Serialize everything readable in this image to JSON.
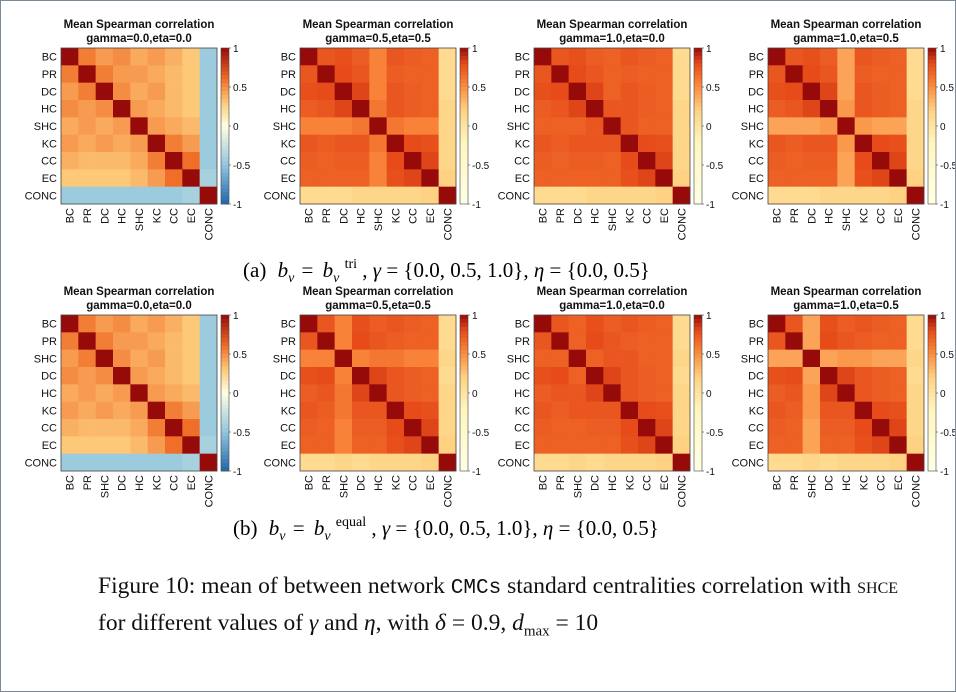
{
  "chart_data": [
    {
      "type": "heatmap",
      "title": "Mean Spearman correlation",
      "subtitle": "gamma=0.0,eta=0.0",
      "labels": [
        "BC",
        "PR",
        "DC",
        "HC",
        "SHC",
        "KC",
        "CC",
        "EC",
        "CONC"
      ],
      "colormap": "diverging-blue-white-red",
      "clim": [
        -1,
        1
      ],
      "colorbar_ticks": [
        "1",
        "0.5",
        "0",
        "-0.5",
        "-1"
      ],
      "values": [
        [
          1.0,
          0.55,
          0.45,
          0.5,
          0.4,
          0.45,
          0.38,
          0.3,
          -0.45
        ],
        [
          0.55,
          1.0,
          0.55,
          0.45,
          0.45,
          0.4,
          0.35,
          0.3,
          -0.45
        ],
        [
          0.45,
          0.55,
          1.0,
          0.5,
          0.4,
          0.45,
          0.35,
          0.3,
          -0.45
        ],
        [
          0.5,
          0.45,
          0.5,
          1.0,
          0.45,
          0.4,
          0.35,
          0.3,
          -0.45
        ],
        [
          0.4,
          0.45,
          0.4,
          0.45,
          1.0,
          0.45,
          0.4,
          0.35,
          -0.45
        ],
        [
          0.45,
          0.4,
          0.45,
          0.4,
          0.45,
          1.0,
          0.55,
          0.45,
          -0.45
        ],
        [
          0.38,
          0.35,
          0.35,
          0.35,
          0.4,
          0.55,
          1.0,
          0.6,
          -0.45
        ],
        [
          0.3,
          0.3,
          0.3,
          0.3,
          0.35,
          0.45,
          0.6,
          1.0,
          -0.4
        ],
        [
          -0.45,
          -0.45,
          -0.45,
          -0.45,
          -0.45,
          -0.45,
          -0.45,
          -0.4,
          1.0
        ]
      ]
    },
    {
      "type": "heatmap",
      "title": "Mean Spearman correlation",
      "subtitle": "gamma=0.5,eta=0.5",
      "labels": [
        "BC",
        "PR",
        "DC",
        "HC",
        "SHC",
        "KC",
        "CC",
        "EC",
        "CONC"
      ],
      "colormap": "white-yellow-red",
      "clim": [
        -1,
        1
      ],
      "colorbar_ticks": [
        "1",
        "0.5",
        "0",
        "-0.5",
        "-1"
      ],
      "values": [
        [
          1.0,
          0.75,
          0.78,
          0.72,
          0.55,
          0.75,
          0.72,
          0.7,
          0.1
        ],
        [
          0.75,
          1.0,
          0.8,
          0.75,
          0.55,
          0.72,
          0.7,
          0.7,
          0.1
        ],
        [
          0.78,
          0.8,
          1.0,
          0.82,
          0.55,
          0.75,
          0.72,
          0.7,
          0.1
        ],
        [
          0.72,
          0.75,
          0.82,
          1.0,
          0.6,
          0.75,
          0.72,
          0.7,
          0.15
        ],
        [
          0.55,
          0.55,
          0.55,
          0.6,
          1.0,
          0.6,
          0.55,
          0.55,
          0.15
        ],
        [
          0.75,
          0.72,
          0.75,
          0.75,
          0.6,
          1.0,
          0.8,
          0.78,
          0.15
        ],
        [
          0.72,
          0.7,
          0.72,
          0.72,
          0.55,
          0.8,
          1.0,
          0.82,
          0.15
        ],
        [
          0.7,
          0.7,
          0.7,
          0.7,
          0.55,
          0.78,
          0.82,
          1.0,
          0.2
        ],
        [
          0.1,
          0.1,
          0.1,
          0.15,
          0.15,
          0.15,
          0.15,
          0.2,
          1.0
        ]
      ]
    },
    {
      "type": "heatmap",
      "title": "Mean Spearman correlation",
      "subtitle": "gamma=1.0,eta=0.0",
      "labels": [
        "BC",
        "PR",
        "DC",
        "HC",
        "SHC",
        "KC",
        "CC",
        "EC",
        "CONC"
      ],
      "colormap": "white-yellow-red",
      "clim": [
        -1,
        1
      ],
      "colorbar_ticks": [
        "1",
        "0.5",
        "0",
        "-0.5",
        "-1"
      ],
      "values": [
        [
          1.0,
          0.75,
          0.78,
          0.72,
          0.7,
          0.75,
          0.72,
          0.7,
          0.1
        ],
        [
          0.75,
          1.0,
          0.8,
          0.75,
          0.7,
          0.72,
          0.7,
          0.7,
          0.1
        ],
        [
          0.78,
          0.8,
          1.0,
          0.82,
          0.7,
          0.75,
          0.72,
          0.7,
          0.1
        ],
        [
          0.72,
          0.75,
          0.82,
          1.0,
          0.75,
          0.75,
          0.72,
          0.7,
          0.15
        ],
        [
          0.7,
          0.7,
          0.7,
          0.75,
          1.0,
          0.75,
          0.7,
          0.7,
          0.15
        ],
        [
          0.75,
          0.72,
          0.75,
          0.75,
          0.75,
          1.0,
          0.8,
          0.78,
          0.15
        ],
        [
          0.72,
          0.7,
          0.72,
          0.72,
          0.7,
          0.8,
          1.0,
          0.82,
          0.15
        ],
        [
          0.7,
          0.7,
          0.7,
          0.7,
          0.7,
          0.78,
          0.82,
          1.0,
          0.2
        ],
        [
          0.1,
          0.1,
          0.1,
          0.15,
          0.15,
          0.15,
          0.15,
          0.2,
          1.0
        ]
      ]
    },
    {
      "type": "heatmap",
      "title": "Mean Spearman correlation",
      "subtitle": "gamma=1.0,eta=0.5",
      "labels": [
        "BC",
        "PR",
        "DC",
        "HC",
        "SHC",
        "KC",
        "CC",
        "EC",
        "CONC"
      ],
      "colormap": "white-yellow-red",
      "clim": [
        -1,
        1
      ],
      "colorbar_ticks": [
        "1",
        "0.5",
        "0",
        "-0.5",
        "-1"
      ],
      "values": [
        [
          1.0,
          0.75,
          0.78,
          0.72,
          0.4,
          0.75,
          0.72,
          0.7,
          0.1
        ],
        [
          0.75,
          1.0,
          0.8,
          0.75,
          0.4,
          0.72,
          0.7,
          0.7,
          0.1
        ],
        [
          0.78,
          0.8,
          1.0,
          0.82,
          0.4,
          0.75,
          0.72,
          0.7,
          0.1
        ],
        [
          0.72,
          0.75,
          0.82,
          1.0,
          0.45,
          0.75,
          0.72,
          0.7,
          0.15
        ],
        [
          0.4,
          0.4,
          0.4,
          0.45,
          1.0,
          0.45,
          0.4,
          0.4,
          0.15
        ],
        [
          0.75,
          0.72,
          0.75,
          0.75,
          0.45,
          1.0,
          0.8,
          0.78,
          0.15
        ],
        [
          0.72,
          0.7,
          0.72,
          0.72,
          0.4,
          0.8,
          1.0,
          0.82,
          0.15
        ],
        [
          0.7,
          0.7,
          0.7,
          0.7,
          0.4,
          0.78,
          0.82,
          1.0,
          0.2
        ],
        [
          0.1,
          0.1,
          0.1,
          0.15,
          0.15,
          0.15,
          0.15,
          0.2,
          1.0
        ]
      ]
    },
    {
      "type": "heatmap",
      "title": "Mean Spearman correlation",
      "subtitle": "gamma=0.0,eta=0.0",
      "labels": [
        "BC",
        "PR",
        "SHC",
        "DC",
        "HC",
        "KC",
        "CC",
        "EC",
        "CONC"
      ],
      "colormap": "diverging-blue-white-red",
      "clim": [
        -1,
        1
      ],
      "colorbar_ticks": [
        "1",
        "0.5",
        "0",
        "-0.5",
        "-1"
      ],
      "values": [
        [
          1.0,
          0.55,
          0.45,
          0.5,
          0.4,
          0.45,
          0.38,
          0.3,
          -0.45
        ],
        [
          0.55,
          1.0,
          0.55,
          0.45,
          0.45,
          0.4,
          0.35,
          0.3,
          -0.45
        ],
        [
          0.45,
          0.55,
          1.0,
          0.5,
          0.4,
          0.45,
          0.35,
          0.3,
          -0.45
        ],
        [
          0.5,
          0.45,
          0.5,
          1.0,
          0.45,
          0.4,
          0.35,
          0.3,
          -0.45
        ],
        [
          0.4,
          0.45,
          0.4,
          0.45,
          1.0,
          0.45,
          0.4,
          0.35,
          -0.45
        ],
        [
          0.45,
          0.4,
          0.45,
          0.4,
          0.45,
          1.0,
          0.55,
          0.45,
          -0.45
        ],
        [
          0.38,
          0.35,
          0.35,
          0.35,
          0.4,
          0.55,
          1.0,
          0.6,
          -0.45
        ],
        [
          0.3,
          0.3,
          0.3,
          0.3,
          0.35,
          0.45,
          0.6,
          1.0,
          -0.4
        ],
        [
          -0.45,
          -0.45,
          -0.45,
          -0.45,
          -0.45,
          -0.45,
          -0.45,
          -0.4,
          1.0
        ]
      ]
    },
    {
      "type": "heatmap",
      "title": "Mean Spearman correlation",
      "subtitle": "gamma=0.5,eta=0.5",
      "labels": [
        "BC",
        "PR",
        "SHC",
        "DC",
        "HC",
        "KC",
        "CC",
        "EC",
        "CONC"
      ],
      "colormap": "white-yellow-red",
      "clim": [
        -1,
        1
      ],
      "colorbar_ticks": [
        "1",
        "0.5",
        "0",
        "-0.5",
        "-1"
      ],
      "values": [
        [
          1.0,
          0.75,
          0.55,
          0.78,
          0.72,
          0.75,
          0.72,
          0.7,
          0.1
        ],
        [
          0.75,
          1.0,
          0.55,
          0.8,
          0.75,
          0.72,
          0.7,
          0.7,
          0.1
        ],
        [
          0.55,
          0.55,
          1.0,
          0.55,
          0.6,
          0.6,
          0.55,
          0.55,
          0.15
        ],
        [
          0.78,
          0.8,
          0.55,
          1.0,
          0.82,
          0.75,
          0.72,
          0.7,
          0.1
        ],
        [
          0.72,
          0.75,
          0.6,
          0.82,
          1.0,
          0.75,
          0.72,
          0.7,
          0.15
        ],
        [
          0.75,
          0.72,
          0.6,
          0.75,
          0.75,
          1.0,
          0.8,
          0.78,
          0.15
        ],
        [
          0.72,
          0.7,
          0.55,
          0.72,
          0.72,
          0.8,
          1.0,
          0.82,
          0.15
        ],
        [
          0.7,
          0.7,
          0.55,
          0.7,
          0.7,
          0.78,
          0.82,
          1.0,
          0.2
        ],
        [
          0.1,
          0.1,
          0.15,
          0.1,
          0.15,
          0.15,
          0.15,
          0.2,
          1.0
        ]
      ]
    },
    {
      "type": "heatmap",
      "title": "Mean Spearman correlation",
      "subtitle": "gamma=1.0,eta=0.0",
      "labels": [
        "BC",
        "PR",
        "SHC",
        "DC",
        "HC",
        "KC",
        "CC",
        "EC",
        "CONC"
      ],
      "colormap": "white-yellow-red",
      "clim": [
        -1,
        1
      ],
      "colorbar_ticks": [
        "1",
        "0.5",
        "0",
        "-0.5",
        "-1"
      ],
      "values": [
        [
          1.0,
          0.75,
          0.7,
          0.78,
          0.72,
          0.75,
          0.72,
          0.7,
          0.1
        ],
        [
          0.75,
          1.0,
          0.7,
          0.8,
          0.75,
          0.72,
          0.7,
          0.7,
          0.1
        ],
        [
          0.7,
          0.7,
          1.0,
          0.7,
          0.75,
          0.75,
          0.7,
          0.7,
          0.15
        ],
        [
          0.78,
          0.8,
          0.7,
          1.0,
          0.82,
          0.75,
          0.72,
          0.7,
          0.1
        ],
        [
          0.72,
          0.75,
          0.75,
          0.82,
          1.0,
          0.75,
          0.72,
          0.7,
          0.15
        ],
        [
          0.75,
          0.72,
          0.75,
          0.75,
          0.75,
          1.0,
          0.8,
          0.78,
          0.15
        ],
        [
          0.72,
          0.7,
          0.7,
          0.72,
          0.72,
          0.8,
          1.0,
          0.82,
          0.15
        ],
        [
          0.7,
          0.7,
          0.7,
          0.7,
          0.7,
          0.78,
          0.82,
          1.0,
          0.2
        ],
        [
          0.1,
          0.1,
          0.15,
          0.1,
          0.15,
          0.15,
          0.15,
          0.2,
          1.0
        ]
      ]
    },
    {
      "type": "heatmap",
      "title": "Mean Spearman correlation",
      "subtitle": "gamma=1.0,eta=0.5",
      "labels": [
        "BC",
        "PR",
        "SHC",
        "DC",
        "HC",
        "KC",
        "CC",
        "EC",
        "CONC"
      ],
      "colormap": "white-yellow-red",
      "clim": [
        -1,
        1
      ],
      "colorbar_ticks": [
        "1",
        "0.5",
        "0",
        "-0.5",
        "-1"
      ],
      "values": [
        [
          1.0,
          0.75,
          0.4,
          0.78,
          0.72,
          0.75,
          0.72,
          0.7,
          0.1
        ],
        [
          0.75,
          1.0,
          0.4,
          0.8,
          0.75,
          0.72,
          0.7,
          0.7,
          0.1
        ],
        [
          0.4,
          0.4,
          1.0,
          0.4,
          0.45,
          0.45,
          0.4,
          0.4,
          0.15
        ],
        [
          0.78,
          0.8,
          0.4,
          1.0,
          0.82,
          0.75,
          0.72,
          0.7,
          0.1
        ],
        [
          0.72,
          0.75,
          0.45,
          0.82,
          1.0,
          0.75,
          0.72,
          0.7,
          0.15
        ],
        [
          0.75,
          0.72,
          0.45,
          0.75,
          0.75,
          1.0,
          0.8,
          0.78,
          0.15
        ],
        [
          0.72,
          0.7,
          0.4,
          0.72,
          0.72,
          0.8,
          1.0,
          0.82,
          0.15
        ],
        [
          0.7,
          0.7,
          0.4,
          0.7,
          0.7,
          0.78,
          0.82,
          1.0,
          0.2
        ],
        [
          0.1,
          0.1,
          0.15,
          0.1,
          0.15,
          0.15,
          0.15,
          0.2,
          1.0
        ]
      ]
    }
  ],
  "subcaptions": {
    "a": {
      "prefix": "(a)",
      "bv_sup": "tri",
      "gamma": "= {0.0, 0.5, 1.0},",
      "eta": "= {0.0, 0.5}"
    },
    "b": {
      "prefix": "(b)",
      "bv_sup": "equal",
      "gamma": "= {0.0, 0.5, 1.0},",
      "eta": "= {0.0, 0.5}"
    }
  },
  "caption": {
    "label": "Figure 10:",
    "t1": "mean of between network",
    "cmcs": "CMCs",
    "t2": "standard centralities correlation with",
    "shce": "shce",
    "t3": "for different values of",
    "t4": "and",
    "t5": ", with",
    "delta_value": "= 0.9,",
    "dmax_sub": "max",
    "dmax_value": "= 10"
  },
  "colors": {
    "border": "#7a8a98",
    "low_blue": "#2b6cb0",
    "mid_white": "#ffffe8",
    "high_red": "#9b0a0a"
  }
}
